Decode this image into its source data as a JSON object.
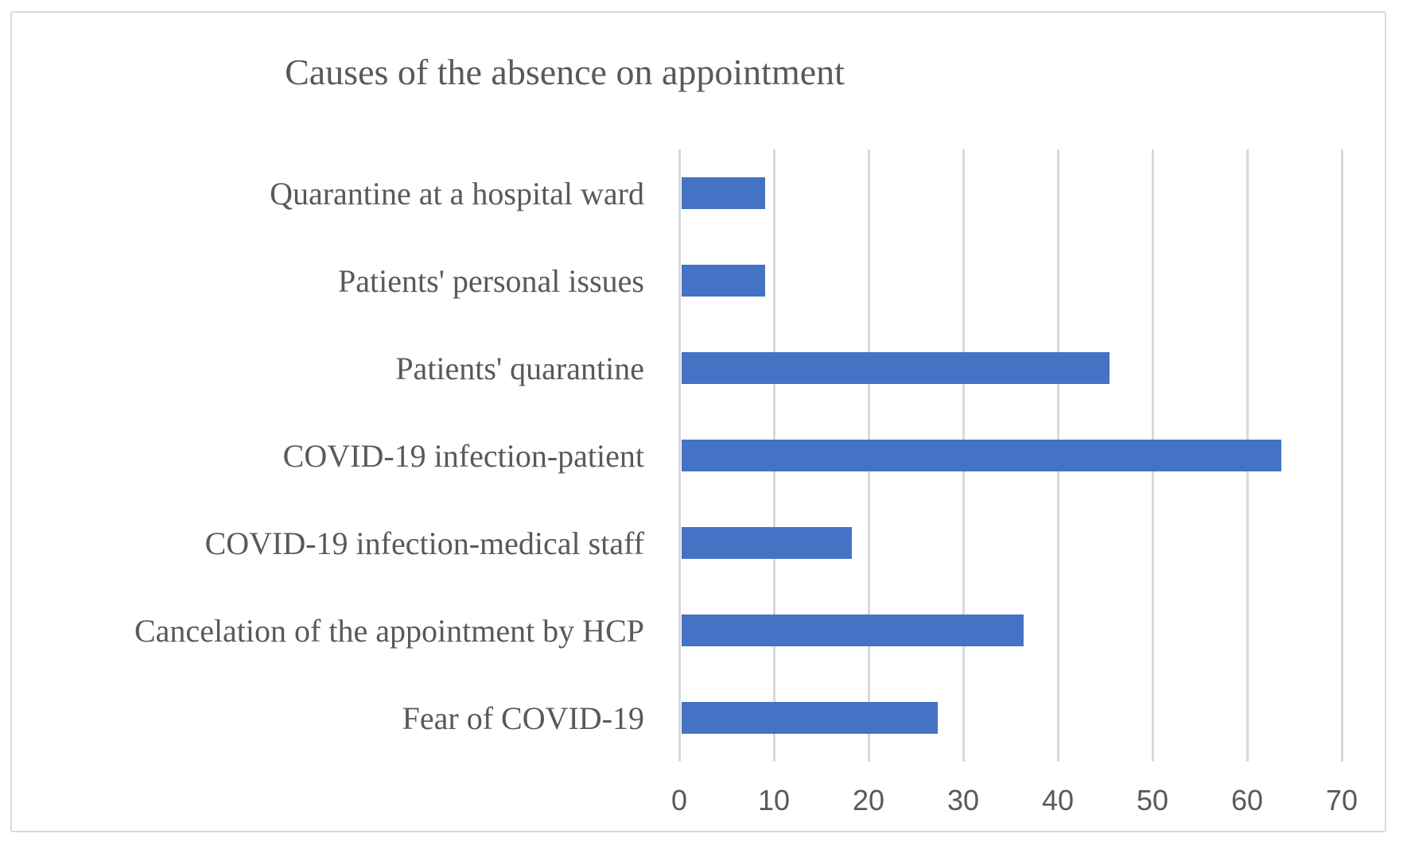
{
  "chart_data": {
    "type": "bar",
    "orientation": "horizontal",
    "title": "Causes of the absence on appointment",
    "categories": [
      "Quarantine at a hospital ward",
      "Patients' personal issues",
      "Patients' quarantine",
      "COVID-19 infection-patient",
      "COVID-19 infection-medical staff",
      "Cancelation of the appointment by HCP",
      "Fear of COVID-19"
    ],
    "values": [
      9.1,
      9.1,
      45.5,
      63.6,
      18.2,
      36.4,
      27.3
    ],
    "xlabel": "",
    "ylabel": "",
    "xlim": [
      0,
      70
    ],
    "x_ticks": [
      0,
      10,
      20,
      30,
      40,
      50,
      60,
      70
    ],
    "grid": "vertical-only",
    "legend": "none",
    "colors": {
      "bar": "#4472C4",
      "gridline": "#D9D9D9",
      "text": "#595959",
      "frame_border": "#D9D9D9",
      "background": "#FFFFFF"
    }
  }
}
